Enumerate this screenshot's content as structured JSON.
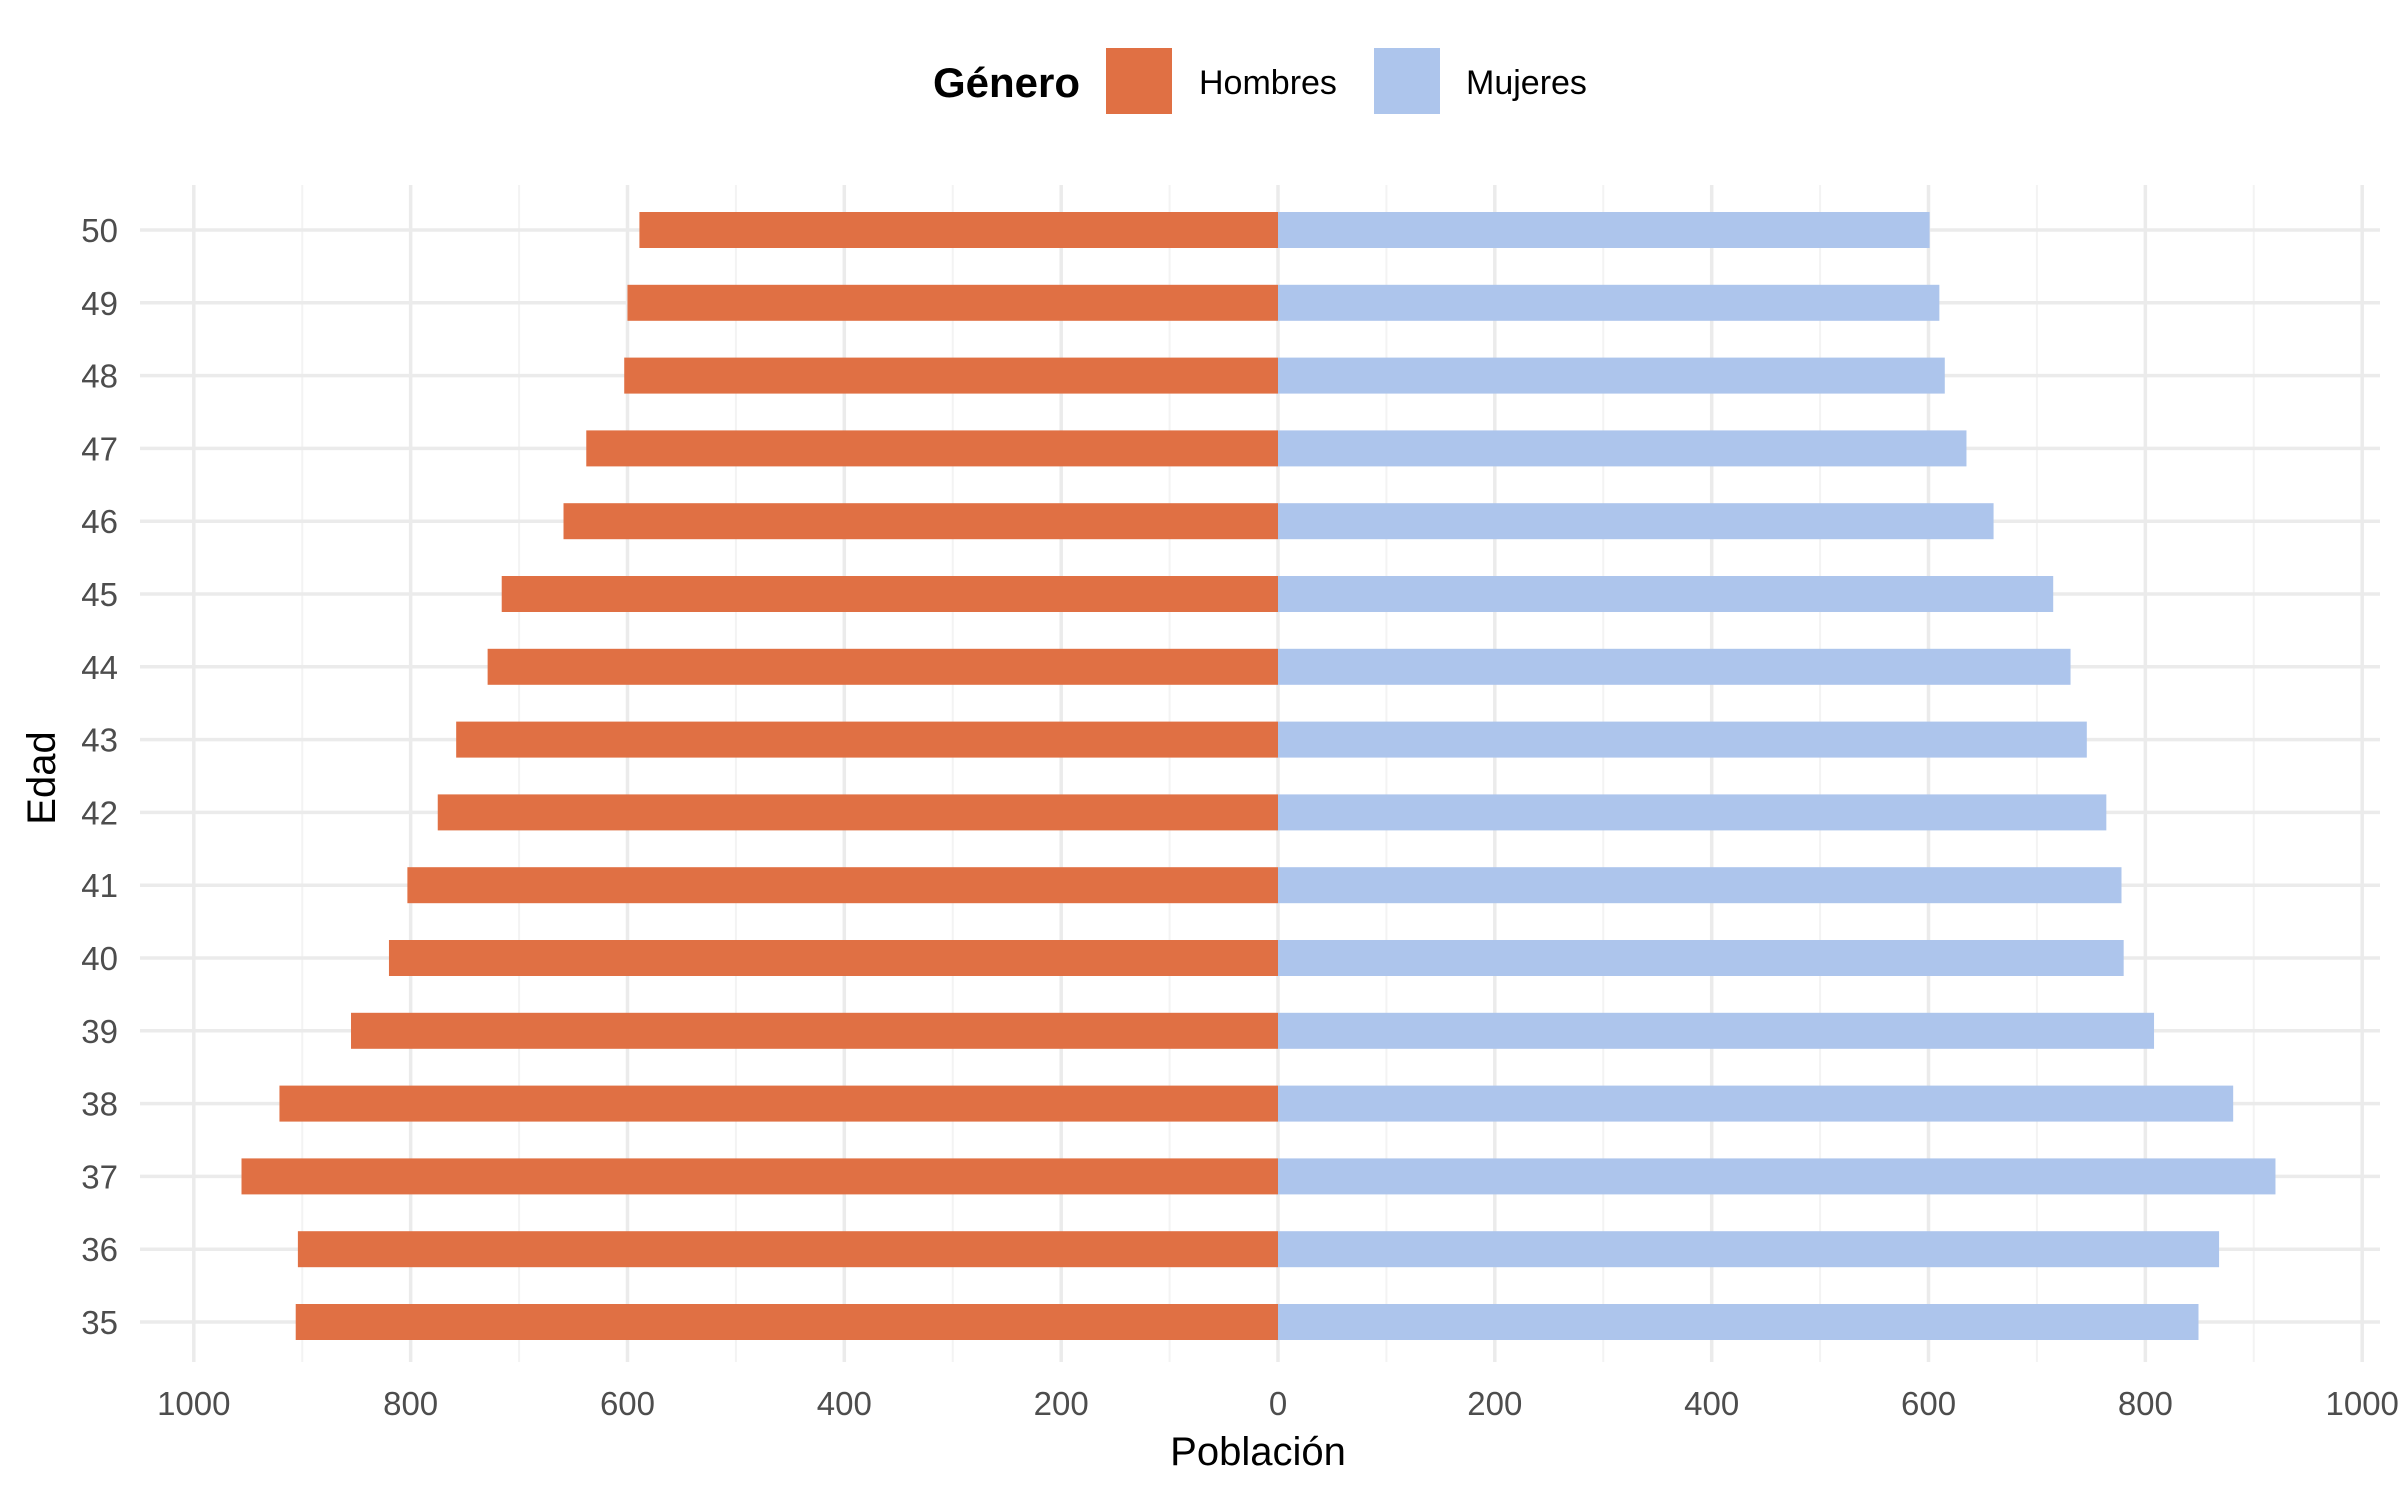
{
  "chart_data": {
    "type": "bar",
    "orientation": "horizontal",
    "layout": "population-pyramid",
    "title": "",
    "xlabel": "Población",
    "ylabel": "Edad",
    "xlim": [
      -1000,
      1000
    ],
    "x_ticks": [
      -1000,
      -800,
      -600,
      -400,
      -200,
      0,
      200,
      400,
      600,
      800,
      1000
    ],
    "x_tick_labels": [
      "1000",
      "800",
      "600",
      "400",
      "200",
      "0",
      "200",
      "400",
      "600",
      "800",
      "1000"
    ],
    "grid": true,
    "legend": {
      "title": "Género",
      "position": "top"
    },
    "categories": [
      "35",
      "36",
      "37",
      "38",
      "39",
      "40",
      "41",
      "42",
      "43",
      "44",
      "45",
      "46",
      "47",
      "48",
      "49",
      "50"
    ],
    "series": [
      {
        "name": "Hombres",
        "color": "#E07044",
        "side": "left",
        "values": [
          906,
          904,
          956,
          921,
          855,
          820,
          803,
          775,
          758,
          729,
          716,
          659,
          638,
          603,
          600,
          589
        ]
      },
      {
        "name": "Mujeres",
        "color": "#ADC5EC",
        "side": "right",
        "values": [
          849,
          868,
          920,
          881,
          808,
          780,
          778,
          764,
          746,
          731,
          715,
          660,
          635,
          615,
          610,
          601
        ]
      }
    ]
  }
}
